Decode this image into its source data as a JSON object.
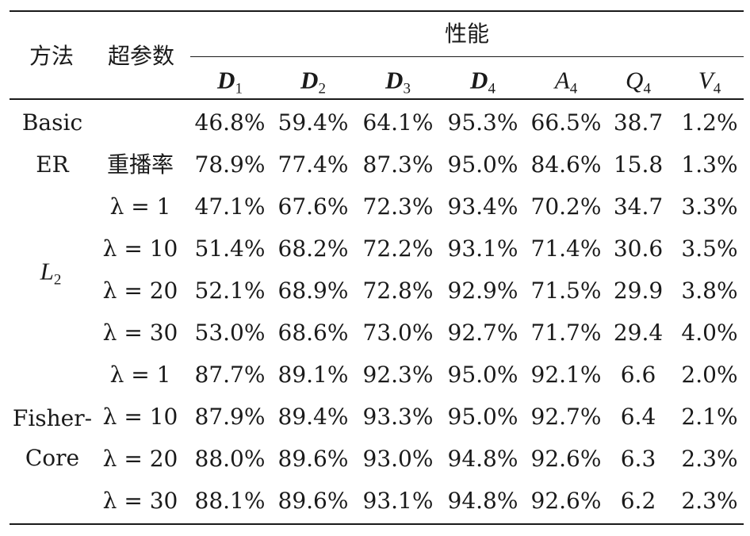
{
  "header": {
    "method": "方法",
    "hyper": "超参数",
    "performance": "性能",
    "columns": [
      {
        "sym": "D",
        "sub": "1",
        "bold": true
      },
      {
        "sym": "D",
        "sub": "2",
        "bold": true
      },
      {
        "sym": "D",
        "sub": "3",
        "bold": true
      },
      {
        "sym": "D",
        "sub": "4",
        "bold": true
      },
      {
        "sym": "A",
        "sub": "4",
        "bold": false
      },
      {
        "sym": "Q",
        "sub": "4",
        "bold": false
      },
      {
        "sym": "V",
        "sub": "4",
        "bold": false
      }
    ]
  },
  "methods": {
    "basic_line1": "Basic",
    "basic_line2": "ER",
    "l2_sym": "L",
    "l2_sub": "2",
    "fisher_line1": "Fisher-",
    "fisher_line2": "Core"
  },
  "rows": [
    {
      "hp": "",
      "values": [
        "46.8%",
        "59.4%",
        "64.1%",
        "95.3%",
        "66.5%",
        "38.7",
        "1.2%"
      ]
    },
    {
      "hp": "重播率",
      "values": [
        "78.9%",
        "77.4%",
        "87.3%",
        "95.0%",
        "84.6%",
        "15.8",
        "1.3%"
      ]
    },
    {
      "hp": "λ = 1",
      "values": [
        "47.1%",
        "67.6%",
        "72.3%",
        "93.4%",
        "70.2%",
        "34.7",
        "3.3%"
      ]
    },
    {
      "hp": "λ = 10",
      "values": [
        "51.4%",
        "68.2%",
        "72.2%",
        "93.1%",
        "71.4%",
        "30.6",
        "3.5%"
      ]
    },
    {
      "hp": "λ = 20",
      "values": [
        "52.1%",
        "68.9%",
        "72.8%",
        "92.9%",
        "71.5%",
        "29.9",
        "3.8%"
      ]
    },
    {
      "hp": "λ = 30",
      "values": [
        "53.0%",
        "68.6%",
        "73.0%",
        "92.7%",
        "71.7%",
        "29.4",
        "4.0%"
      ]
    },
    {
      "hp": "λ = 1",
      "values": [
        "87.7%",
        "89.1%",
        "92.3%",
        "95.0%",
        "92.1%",
        "6.6",
        "2.0%"
      ]
    },
    {
      "hp": "λ = 10",
      "values": [
        "87.9%",
        "89.4%",
        "93.3%",
        "95.0%",
        "92.7%",
        "6.4",
        "2.1%"
      ]
    },
    {
      "hp": "λ = 20",
      "values": [
        "88.0%",
        "89.6%",
        "93.0%",
        "94.8%",
        "92.6%",
        "6.3",
        "2.3%"
      ]
    },
    {
      "hp": "λ = 30",
      "values": [
        "88.1%",
        "89.6%",
        "93.1%",
        "94.8%",
        "92.6%",
        "6.2",
        "2.3%"
      ]
    }
  ]
}
